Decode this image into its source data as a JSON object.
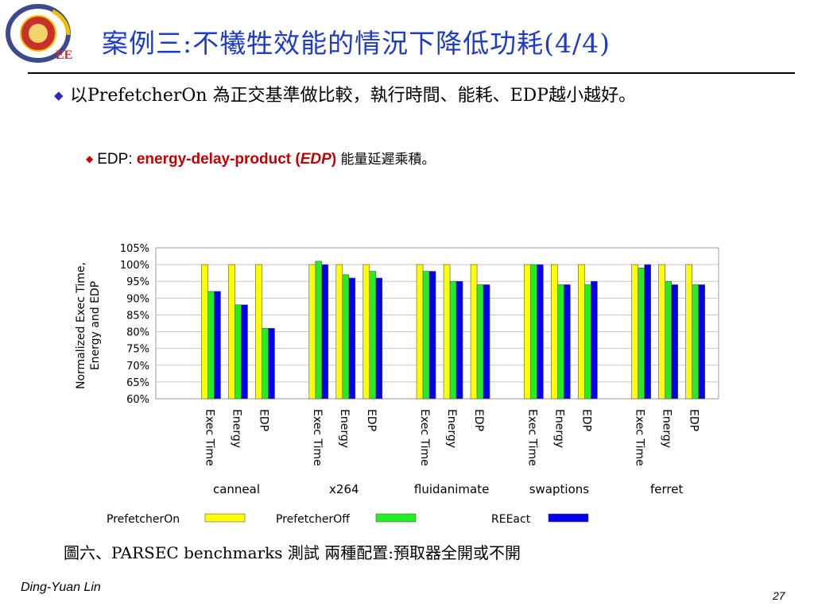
{
  "logo": {
    "badge_text": "EE",
    "ring_color": "#3a4a8c",
    "seal_color": "#c8302c"
  },
  "title": "案例三:不犧牲效能的情況下降低功耗(4/4)",
  "bullet1": "以PrefetcherOn 為正交基準做比較，執行時間、能耗、EDP越小越好。",
  "bullet2": {
    "label": "EDP: ",
    "term": "energy-delay-product (",
    "abbr": "EDP",
    "close": ")",
    "cjk": " 能量延遲乘積。"
  },
  "caption": "圖六、PARSEC benchmarks 測試 兩種配置:預取器全開或不開",
  "footer": {
    "author": "Ding-Yuan Lin",
    "page": "27"
  },
  "colors": {
    "title": "#1f3cc7",
    "bullet_mark": "#2b2bb8",
    "highlight": "#c00000"
  },
  "chart_data": {
    "type": "bar",
    "ylabel": "Normalized Exec Time,\nEnergy and EDP",
    "yticks": [
      "105%",
      "100%",
      "95%",
      "90%",
      "85%",
      "80%",
      "75%",
      "70%",
      "65%",
      "60%"
    ],
    "ylim": [
      60,
      105
    ],
    "grid": true,
    "metrics": [
      "Exec Time",
      "Energy",
      "EDP"
    ],
    "groups": [
      {
        "name": "canneal",
        "values": [
          [
            100,
            92,
            92
          ],
          [
            100,
            88,
            88
          ],
          [
            100,
            81,
            81
          ]
        ]
      },
      {
        "name": "x264",
        "values": [
          [
            100,
            101,
            100
          ],
          [
            100,
            97,
            96
          ],
          [
            100,
            98,
            96
          ]
        ]
      },
      {
        "name": "fluidanimate",
        "values": [
          [
            100,
            98,
            98
          ],
          [
            100,
            95,
            95
          ],
          [
            100,
            94,
            94
          ]
        ]
      },
      {
        "name": "swaptions",
        "values": [
          [
            100,
            100,
            100
          ],
          [
            100,
            94,
            94
          ],
          [
            100,
            94,
            95
          ]
        ]
      },
      {
        "name": "ferret",
        "values": [
          [
            100,
            99,
            100
          ],
          [
            100,
            95,
            94
          ],
          [
            100,
            94,
            94
          ]
        ]
      }
    ],
    "series": [
      {
        "name": "PrefetcherOn",
        "color": "#ffff00"
      },
      {
        "name": "PrefetcherOff",
        "color": "#22ee22"
      },
      {
        "name": "REEact",
        "color": "#0000ee"
      }
    ],
    "legend": "bottom"
  }
}
